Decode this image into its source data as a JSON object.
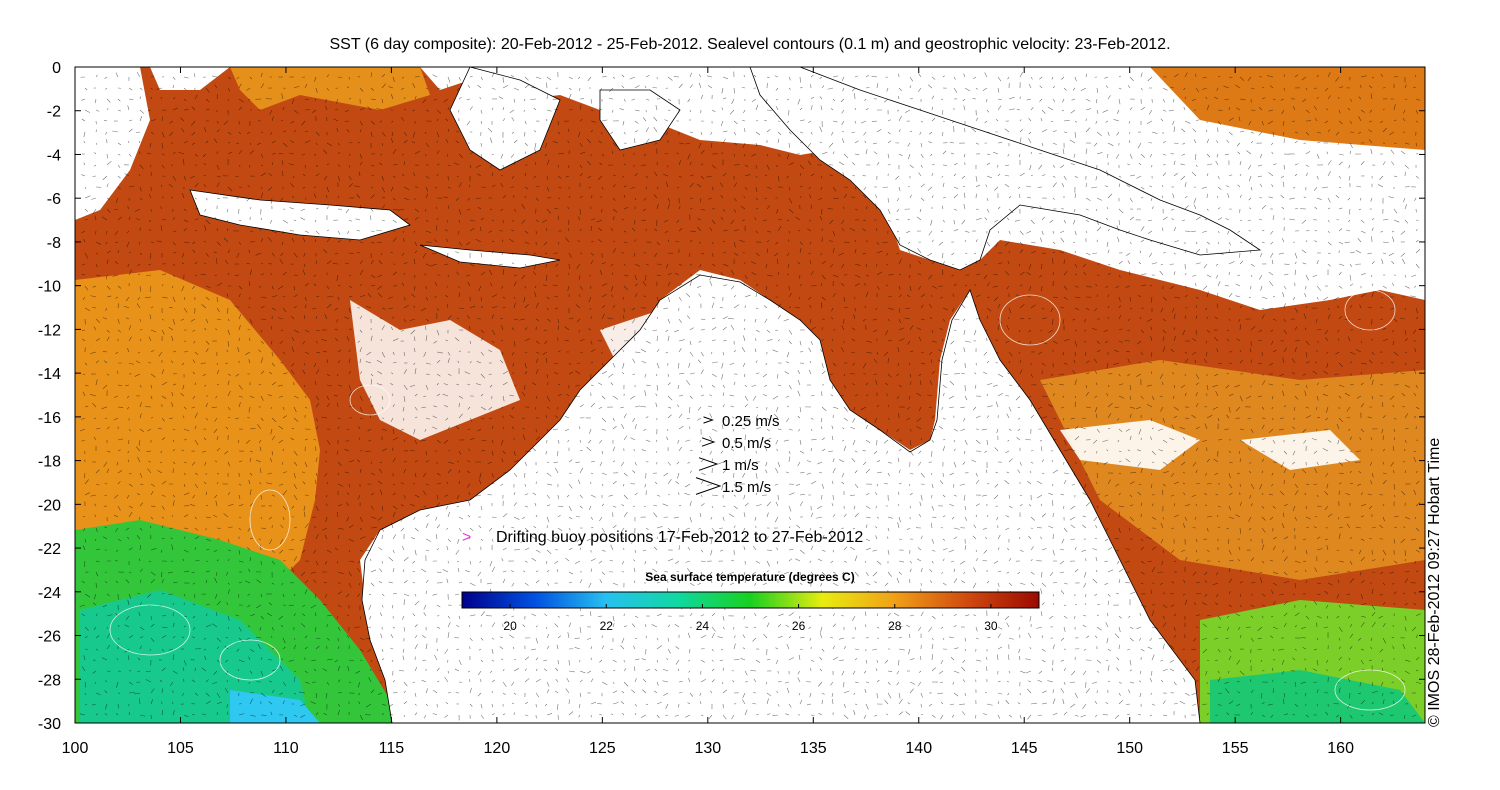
{
  "title": "SST (6 day composite): 20-Feb-2012 - 25-Feb-2012. Sealevel contours (0.1 m) and geostrophic velocity: 23-Feb-2012.",
  "credit": "© IMOS 28-Feb-2012 09:27 Hobart Time",
  "map": {
    "lon_range": [
      100,
      164
    ],
    "lat_range": [
      -30,
      0
    ],
    "x_ticks": [
      100,
      105,
      110,
      115,
      120,
      125,
      130,
      135,
      140,
      145,
      150,
      155,
      160
    ],
    "y_ticks": [
      0,
      -2,
      -4,
      -6,
      -8,
      -10,
      -12,
      -14,
      -16,
      -18,
      -20,
      -22,
      -24,
      -26,
      -28,
      -30
    ],
    "land_color": "#ffffff",
    "coast_color": "#000000",
    "contour_color": "#ffffff"
  },
  "velocity_legend": [
    {
      "speed": 0.25,
      "label": "0.25 m/s"
    },
    {
      "speed": 0.5,
      "label": "0.5 m/s"
    },
    {
      "speed": 1,
      "label": "1 m/s"
    },
    {
      "speed": 1.5,
      "label": "1.5 m/s"
    }
  ],
  "buoy_legend": {
    "marker": ">",
    "color": "#e040e0",
    "label": "Drifting buoy positions 17-Feb-2012 to 27-Feb-2012"
  },
  "colorbar": {
    "title": "Sea surface temperature (degrees C)",
    "min": 19,
    "max": 31,
    "ticks": [
      20,
      22,
      24,
      26,
      28,
      30
    ],
    "colormap": [
      "#00008c",
      "#0050e0",
      "#28c0f0",
      "#10d8a0",
      "#18d020",
      "#e8ec10",
      "#f0a018",
      "#d04a10",
      "#9c0a00"
    ]
  }
}
